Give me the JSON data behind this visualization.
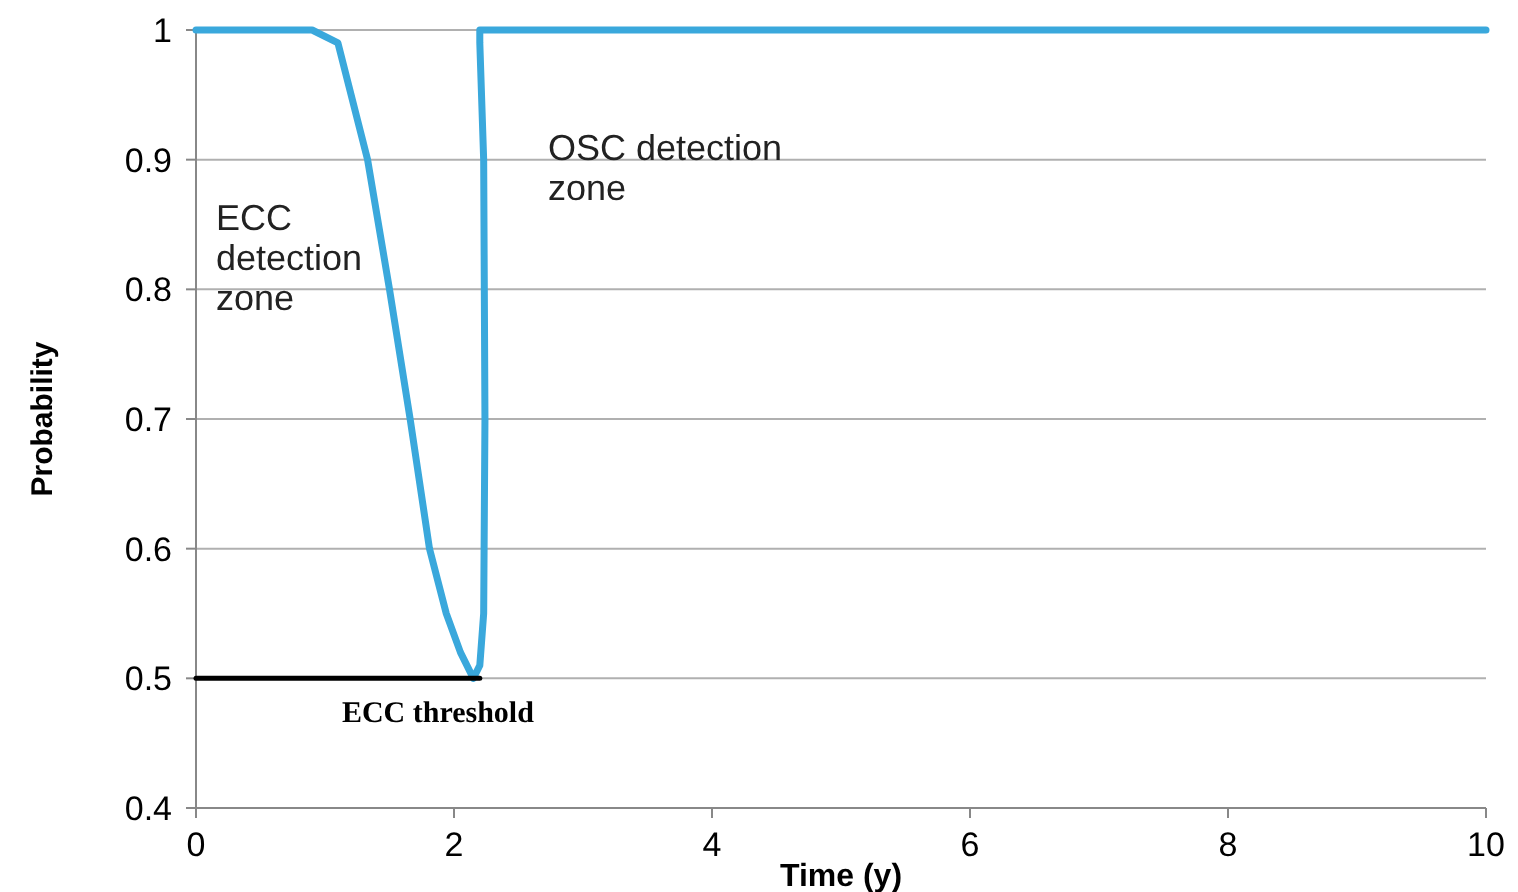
{
  "chart_data": {
    "type": "line",
    "xlabel": "Time (y)",
    "ylabel": "Probability",
    "xlim": [
      0,
      10
    ],
    "ylim": [
      0.4,
      1
    ],
    "xticks": [
      0,
      2,
      4,
      6,
      8,
      10
    ],
    "yticks": [
      0.4,
      0.5,
      0.6,
      0.7,
      0.8,
      0.9,
      1
    ],
    "grid": "y",
    "marker": "none",
    "line_style": "solid",
    "series": [
      {
        "color": "#3aa8dc",
        "x": [
          0,
          0.9,
          1.1,
          1.33,
          1.5,
          1.66,
          1.81,
          1.94,
          2.05,
          2.15,
          2.2,
          2.23,
          2.24,
          2.23,
          2.2,
          2.2,
          3,
          10
        ],
        "values": [
          1,
          1,
          0.99,
          0.9,
          0.8,
          0.7,
          0.6,
          0.55,
          0.52,
          0.5,
          0.51,
          0.55,
          0.7,
          0.9,
          0.99,
          1,
          1,
          1
        ]
      },
      {
        "name": "ECC threshold",
        "color": "#000000",
        "x": [
          0,
          2.2
        ],
        "values": [
          0.5,
          0.5
        ]
      }
    ],
    "annotations": [
      "ECC detection zone",
      "OSC detection zone"
    ]
  }
}
